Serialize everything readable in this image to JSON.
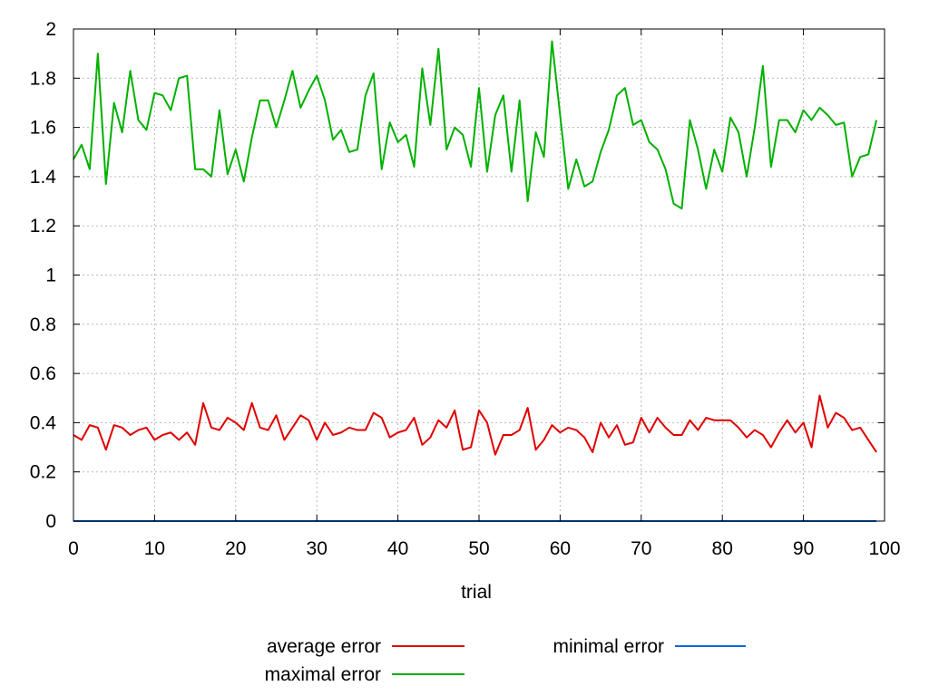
{
  "chart_data": {
    "type": "line",
    "title": "",
    "xlabel": "trial",
    "ylabel": "",
    "xlim": [
      0,
      100
    ],
    "ylim": [
      0,
      2
    ],
    "xticks": [
      0,
      10,
      20,
      30,
      40,
      50,
      60,
      70,
      80,
      90,
      100
    ],
    "yticks": [
      0,
      0.2,
      0.4,
      0.6,
      0.8,
      1,
      1.2,
      1.4,
      1.6,
      1.8,
      2
    ],
    "grid": true,
    "legend_position": "bottom",
    "series": [
      {
        "name": "average error",
        "color": "#e00000",
        "x": [
          0,
          1,
          2,
          3,
          4,
          5,
          6,
          7,
          8,
          9,
          10,
          11,
          12,
          13,
          14,
          15,
          16,
          17,
          18,
          19,
          20,
          21,
          22,
          23,
          24,
          25,
          26,
          27,
          28,
          29,
          30,
          31,
          32,
          33,
          34,
          35,
          36,
          37,
          38,
          39,
          40,
          41,
          42,
          43,
          44,
          45,
          46,
          47,
          48,
          49,
          50,
          51,
          52,
          53,
          54,
          55,
          56,
          57,
          58,
          59,
          60,
          61,
          62,
          63,
          64,
          65,
          66,
          67,
          68,
          69,
          70,
          71,
          72,
          73,
          74,
          75,
          76,
          77,
          78,
          79,
          80,
          81,
          82,
          83,
          84,
          85,
          86,
          87,
          88,
          89,
          90,
          91,
          92,
          93,
          94,
          95,
          96,
          97,
          98,
          99
        ],
        "values": [
          0.35,
          0.33,
          0.39,
          0.38,
          0.29,
          0.39,
          0.38,
          0.35,
          0.37,
          0.38,
          0.33,
          0.35,
          0.36,
          0.33,
          0.36,
          0.31,
          0.48,
          0.38,
          0.37,
          0.42,
          0.4,
          0.37,
          0.48,
          0.38,
          0.37,
          0.43,
          0.33,
          0.38,
          0.43,
          0.41,
          0.33,
          0.4,
          0.35,
          0.36,
          0.38,
          0.37,
          0.37,
          0.44,
          0.42,
          0.34,
          0.36,
          0.37,
          0.42,
          0.31,
          0.34,
          0.41,
          0.38,
          0.45,
          0.29,
          0.3,
          0.45,
          0.4,
          0.27,
          0.35,
          0.35,
          0.37,
          0.46,
          0.29,
          0.33,
          0.39,
          0.36,
          0.38,
          0.37,
          0.34,
          0.28,
          0.4,
          0.34,
          0.39,
          0.31,
          0.32,
          0.42,
          0.36,
          0.42,
          0.38,
          0.35,
          0.35,
          0.41,
          0.37,
          0.42,
          0.41,
          0.41,
          0.41,
          0.38,
          0.34,
          0.37,
          0.35,
          0.3,
          0.36,
          0.41,
          0.36,
          0.4,
          0.3,
          0.51,
          0.38,
          0.44,
          0.42,
          0.37,
          0.38,
          0.33,
          0.28
        ]
      },
      {
        "name": "maximal error",
        "color": "#00b000",
        "x": [
          0,
          1,
          2,
          3,
          4,
          5,
          6,
          7,
          8,
          9,
          10,
          11,
          12,
          13,
          14,
          15,
          16,
          17,
          18,
          19,
          20,
          21,
          22,
          23,
          24,
          25,
          26,
          27,
          28,
          29,
          30,
          31,
          32,
          33,
          34,
          35,
          36,
          37,
          38,
          39,
          40,
          41,
          42,
          43,
          44,
          45,
          46,
          47,
          48,
          49,
          50,
          51,
          52,
          53,
          54,
          55,
          56,
          57,
          58,
          59,
          60,
          61,
          62,
          63,
          64,
          65,
          66,
          67,
          68,
          69,
          70,
          71,
          72,
          73,
          74,
          75,
          76,
          77,
          78,
          79,
          80,
          81,
          82,
          83,
          84,
          85,
          86,
          87,
          88,
          89,
          90,
          91,
          92,
          93,
          94,
          95,
          96,
          97,
          98,
          99
        ],
        "values": [
          1.47,
          1.53,
          1.43,
          1.9,
          1.37,
          1.7,
          1.58,
          1.83,
          1.63,
          1.59,
          1.74,
          1.73,
          1.67,
          1.8,
          1.81,
          1.43,
          1.43,
          1.4,
          1.67,
          1.41,
          1.51,
          1.38,
          1.56,
          1.71,
          1.71,
          1.6,
          1.71,
          1.83,
          1.68,
          1.75,
          1.81,
          1.71,
          1.55,
          1.59,
          1.5,
          1.51,
          1.73,
          1.82,
          1.43,
          1.62,
          1.54,
          1.57,
          1.44,
          1.84,
          1.61,
          1.92,
          1.51,
          1.6,
          1.57,
          1.44,
          1.76,
          1.42,
          1.65,
          1.73,
          1.42,
          1.71,
          1.3,
          1.58,
          1.48,
          1.95,
          1.65,
          1.35,
          1.47,
          1.36,
          1.38,
          1.5,
          1.59,
          1.73,
          1.76,
          1.61,
          1.63,
          1.54,
          1.51,
          1.43,
          1.29,
          1.27,
          1.63,
          1.51,
          1.35,
          1.51,
          1.42,
          1.64,
          1.58,
          1.4,
          1.6,
          1.85,
          1.44,
          1.63,
          1.63,
          1.58,
          1.67,
          1.63,
          1.68,
          1.65,
          1.61,
          1.62,
          1.4,
          1.48,
          1.49,
          1.63
        ]
      },
      {
        "name": "minimal error",
        "color": "#0066dd",
        "x": [
          0,
          99
        ],
        "values": [
          0,
          0
        ]
      }
    ]
  }
}
